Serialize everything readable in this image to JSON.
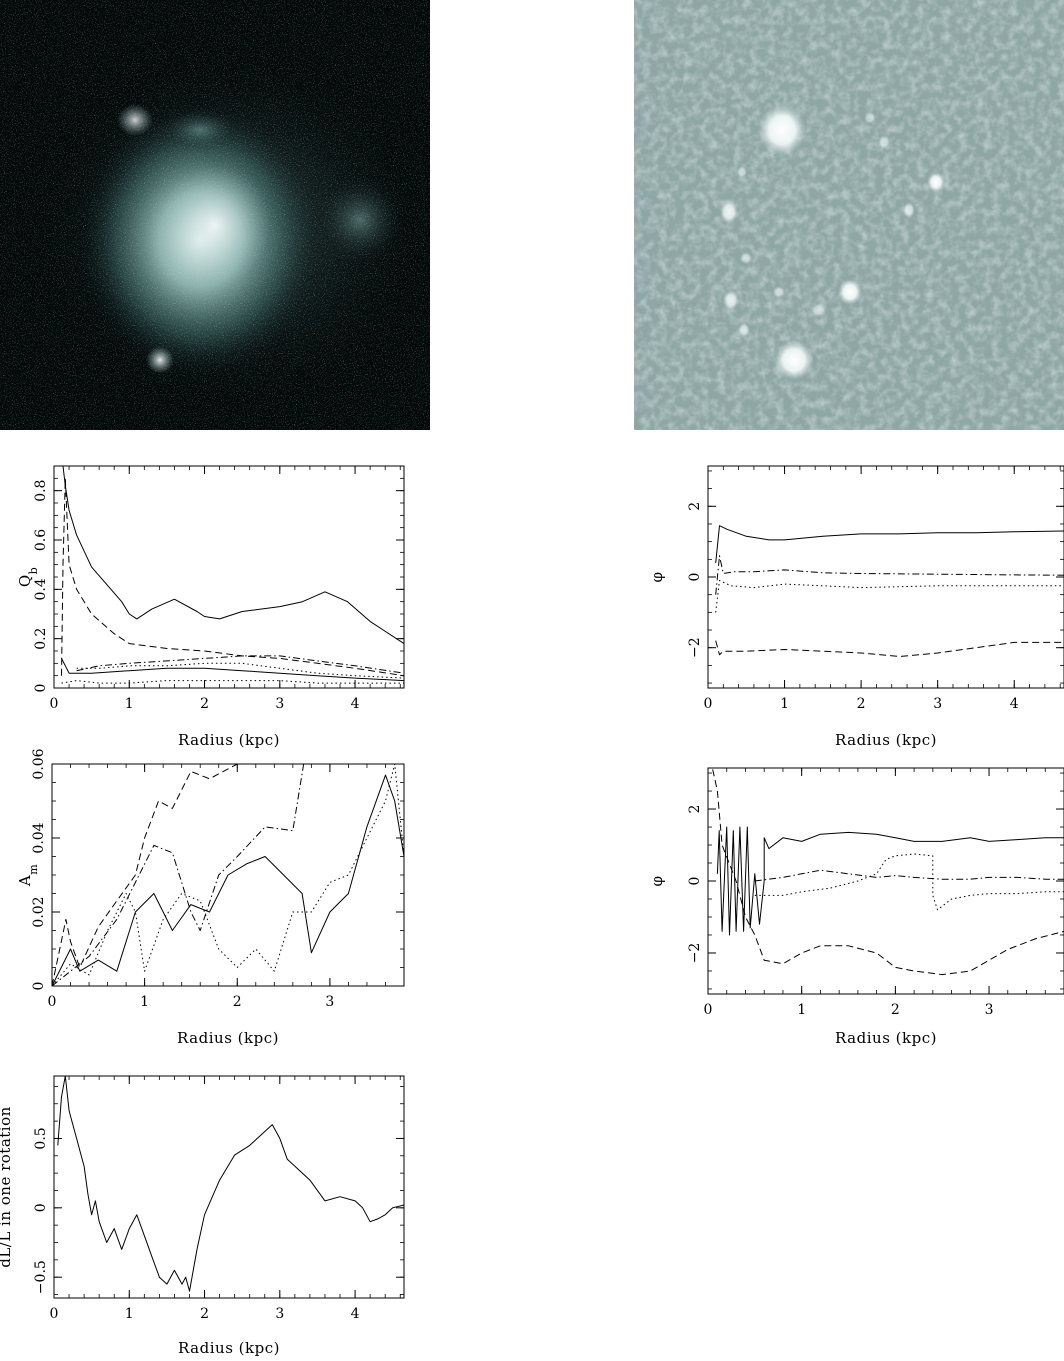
{
  "colors": {
    "left_image_background": "#020808",
    "left_image_glow": "#cfe8e8",
    "right_image_background": "#8ea6a4",
    "right_image_spots": "#ffffff",
    "axes": "#000000"
  },
  "images": [
    {
      "name": "galaxy-image-left"
    },
    {
      "name": "galaxy-image-right"
    }
  ],
  "chart_data": [
    {
      "type": "line",
      "name": "qb-plot",
      "xlabel": "Radius (kpc)",
      "ylabel": "Q_b",
      "ylabel_main": "Q",
      "ylabel_sub": "b",
      "xlim": [
        0,
        4.65
      ],
      "ylim": [
        0,
        0.9
      ],
      "xticks": [
        0,
        1,
        2,
        3,
        4
      ],
      "yticks": [
        0,
        0.2,
        0.4,
        0.6,
        0.8
      ],
      "xtick_labels": [
        "0",
        "1",
        "2",
        "3",
        "4"
      ],
      "ytick_labels": [
        "0",
        "0.2",
        "0.4",
        "0.6",
        "0.8"
      ],
      "series": [
        {
          "style": "solid",
          "x": [
            0.12,
            0.15,
            0.2,
            0.3,
            0.5,
            0.7,
            0.9,
            1.0,
            1.1,
            1.3,
            1.6,
            1.9,
            2.0,
            2.2,
            2.5,
            3.0,
            3.3,
            3.6,
            3.9,
            4.2,
            4.65
          ],
          "y": [
            0.9,
            0.82,
            0.72,
            0.62,
            0.49,
            0.42,
            0.35,
            0.3,
            0.28,
            0.32,
            0.36,
            0.31,
            0.29,
            0.28,
            0.31,
            0.33,
            0.35,
            0.39,
            0.35,
            0.27,
            0.18
          ]
        },
        {
          "style": "dashed",
          "x": [
            0.1,
            0.12,
            0.15,
            0.2,
            0.3,
            0.5,
            0.8,
            1.0,
            1.5,
            2.0,
            2.5,
            3.0,
            3.5,
            4.0,
            4.65
          ],
          "y": [
            0.05,
            0.5,
            0.85,
            0.5,
            0.4,
            0.3,
            0.22,
            0.18,
            0.16,
            0.15,
            0.13,
            0.12,
            0.1,
            0.08,
            0.05
          ]
        },
        {
          "style": "dashdot",
          "x": [
            0.3,
            0.6,
            1.0,
            1.5,
            2.0,
            2.5,
            3.0,
            3.5,
            4.0,
            4.65
          ],
          "y": [
            0.07,
            0.09,
            0.1,
            0.11,
            0.12,
            0.13,
            0.13,
            0.11,
            0.09,
            0.06
          ]
        },
        {
          "style": "dotted",
          "x": [
            0.3,
            0.6,
            1.0,
            1.5,
            2.0,
            2.5,
            3.0,
            3.5,
            4.0,
            4.65
          ],
          "y": [
            0.08,
            0.08,
            0.09,
            0.09,
            0.1,
            0.1,
            0.08,
            0.06,
            0.05,
            0.04
          ]
        },
        {
          "style": "solid",
          "x": [
            0.1,
            0.2,
            0.5,
            1.0,
            1.5,
            2.0,
            2.5,
            3.0,
            3.5,
            4.0,
            4.65
          ],
          "y": [
            0.12,
            0.06,
            0.06,
            0.07,
            0.08,
            0.08,
            0.07,
            0.06,
            0.05,
            0.04,
            0.03
          ]
        },
        {
          "style": "dotted",
          "x": [
            0.1,
            0.3,
            0.6,
            1.0,
            1.5,
            2.0,
            2.5,
            3.0,
            3.5,
            4.0,
            4.65
          ],
          "y": [
            0.02,
            0.03,
            0.02,
            0.02,
            0.03,
            0.03,
            0.03,
            0.03,
            0.02,
            0.02,
            0.02
          ]
        }
      ]
    },
    {
      "type": "line",
      "name": "phase-plot-1",
      "xlabel": "Radius (kpc)",
      "ylabel": "φ",
      "ylabel_main": "φ",
      "ylabel_sub": "",
      "xlim": [
        0,
        4.65
      ],
      "ylim": [
        -3.14,
        3.14
      ],
      "xticks": [
        0,
        1,
        2,
        3,
        4
      ],
      "yticks": [
        -2,
        0,
        2
      ],
      "xtick_labels": [
        "0",
        "1",
        "2",
        "3",
        "4"
      ],
      "ytick_labels": [
        "−2",
        "0",
        "2"
      ],
      "series": [
        {
          "style": "solid",
          "x": [
            0.1,
            0.15,
            0.25,
            0.5,
            0.8,
            1.0,
            1.5,
            2.0,
            2.5,
            3.0,
            3.5,
            4.0,
            4.65
          ],
          "y": [
            0.4,
            1.45,
            1.35,
            1.15,
            1.05,
            1.05,
            1.15,
            1.22,
            1.22,
            1.25,
            1.25,
            1.28,
            1.3
          ]
        },
        {
          "style": "dashdot",
          "x": [
            0.1,
            0.15,
            0.2,
            0.35,
            0.6,
            1.0,
            1.5,
            2.0,
            3.0,
            4.0,
            4.65
          ],
          "y": [
            -0.5,
            0.6,
            0.1,
            0.15,
            0.15,
            0.2,
            0.12,
            0.1,
            0.08,
            0.06,
            0.05
          ]
        },
        {
          "style": "dotted",
          "x": [
            0.1,
            0.15,
            0.3,
            0.6,
            1.0,
            1.5,
            2.0,
            3.0,
            4.0,
            4.65
          ],
          "y": [
            -1.0,
            -0.1,
            -0.25,
            -0.3,
            -0.2,
            -0.25,
            -0.3,
            -0.25,
            -0.25,
            -0.25
          ]
        },
        {
          "style": "dashed",
          "x": [
            0.1,
            0.15,
            0.2,
            0.5,
            1.0,
            1.5,
            2.0,
            2.5,
            3.0,
            3.5,
            4.0,
            4.65
          ],
          "y": [
            -1.8,
            -2.2,
            -2.1,
            -2.1,
            -2.05,
            -2.1,
            -2.15,
            -2.25,
            -2.15,
            -2.0,
            -1.85,
            -1.85
          ]
        }
      ]
    },
    {
      "type": "line",
      "name": "amplitude-plot",
      "xlabel": "Radius (kpc)",
      "ylabel": "A_m",
      "ylabel_main": "A",
      "ylabel_sub": "m",
      "xlim": [
        0,
        3.8
      ],
      "ylim": [
        0,
        0.06
      ],
      "xticks": [
        0,
        1,
        2,
        3
      ],
      "yticks": [
        0,
        0.02,
        0.04,
        0.06
      ],
      "xtick_labels": [
        "0",
        "1",
        "2",
        "3"
      ],
      "ytick_labels": [
        "0",
        "0.02",
        "0.04",
        "0.06"
      ],
      "series": [
        {
          "style": "dashed",
          "x": [
            0.0,
            0.1,
            0.15,
            0.2,
            0.3,
            0.5,
            0.7,
            0.9,
            1.0,
            1.15,
            1.3,
            1.5,
            1.7,
            2.0,
            2.2
          ],
          "y": [
            0.0,
            0.012,
            0.018,
            0.012,
            0.005,
            0.016,
            0.023,
            0.03,
            0.04,
            0.05,
            0.048,
            0.058,
            0.056,
            0.06,
            0.065
          ]
        },
        {
          "style": "dashdot",
          "x": [
            0.0,
            0.2,
            0.4,
            0.7,
            0.9,
            1.1,
            1.3,
            1.5,
            1.6,
            1.8,
            2.0,
            2.3,
            2.6,
            2.75
          ],
          "y": [
            0.0,
            0.004,
            0.008,
            0.018,
            0.028,
            0.038,
            0.036,
            0.02,
            0.015,
            0.03,
            0.035,
            0.043,
            0.042,
            0.065
          ]
        },
        {
          "style": "solid",
          "x": [
            0.0,
            0.2,
            0.3,
            0.5,
            0.7,
            0.9,
            1.1,
            1.3,
            1.5,
            1.7,
            1.9,
            2.1,
            2.3,
            2.5,
            2.7,
            2.8,
            3.0,
            3.2,
            3.4,
            3.6,
            3.7,
            3.8
          ],
          "y": [
            0.0,
            0.01,
            0.004,
            0.007,
            0.004,
            0.02,
            0.025,
            0.015,
            0.022,
            0.02,
            0.03,
            0.033,
            0.035,
            0.03,
            0.025,
            0.009,
            0.02,
            0.025,
            0.043,
            0.057,
            0.05,
            0.035
          ]
        },
        {
          "style": "dotted",
          "x": [
            0.0,
            0.2,
            0.4,
            0.6,
            0.8,
            0.9,
            1.0,
            1.2,
            1.4,
            1.6,
            1.8,
            2.0,
            2.2,
            2.4,
            2.6,
            2.8,
            3.0,
            3.2,
            3.4,
            3.6,
            3.7,
            3.8
          ],
          "y": [
            0.0,
            0.006,
            0.003,
            0.015,
            0.025,
            0.02,
            0.004,
            0.018,
            0.025,
            0.023,
            0.01,
            0.005,
            0.01,
            0.004,
            0.02,
            0.02,
            0.028,
            0.03,
            0.04,
            0.05,
            0.06,
            0.035
          ]
        }
      ]
    },
    {
      "type": "line",
      "name": "phase-plot-2",
      "xlabel": "Radius (kpc)",
      "ylabel": "φ",
      "ylabel_main": "φ",
      "ylabel_sub": "",
      "xlim": [
        0,
        3.8
      ],
      "ylim": [
        -3.14,
        3.14
      ],
      "xticks": [
        0,
        1,
        2,
        3
      ],
      "yticks": [
        -2,
        0,
        2
      ],
      "xtick_labels": [
        "0",
        "1",
        "2",
        "3"
      ],
      "ytick_labels": [
        "−2",
        "0",
        "2"
      ],
      "series": [
        {
          "style": "solid",
          "x": [
            0.1,
            0.12,
            0.15,
            0.2,
            0.23,
            0.27,
            0.3,
            0.34,
            0.38,
            0.42,
            0.45,
            0.5,
            0.55,
            0.6,
            0.6,
            0.65,
            0.8,
            1.0,
            1.2,
            1.5,
            1.8,
            2.0,
            2.2,
            2.5,
            2.8,
            3.0,
            3.3,
            3.6,
            3.8
          ],
          "y": [
            0.2,
            1.4,
            -1.4,
            1.5,
            -1.5,
            1.4,
            -1.4,
            1.5,
            -1.4,
            1.5,
            -1.3,
            0.2,
            -1.2,
            0.0,
            1.2,
            0.9,
            1.2,
            1.1,
            1.3,
            1.35,
            1.3,
            1.2,
            1.1,
            1.1,
            1.2,
            1.1,
            1.15,
            1.2,
            1.2
          ]
        },
        {
          "style": "dashed",
          "x": [
            0.05,
            0.1,
            0.15,
            0.3,
            0.4,
            0.5,
            0.6,
            0.8,
            1.0,
            1.2,
            1.5,
            1.8,
            2.0,
            2.2,
            2.5,
            2.8,
            3.0,
            3.2,
            3.5,
            3.8
          ],
          "y": [
            3.1,
            2.5,
            1.0,
            0.0,
            -1.0,
            -1.5,
            -2.2,
            -2.3,
            -2.0,
            -1.8,
            -1.8,
            -2.0,
            -2.4,
            -2.5,
            -2.6,
            -2.5,
            -2.2,
            -1.9,
            -1.6,
            -1.4
          ]
        },
        {
          "style": "dashdot",
          "x": [
            0.5,
            0.8,
            1.0,
            1.2,
            1.5,
            1.8,
            2.0,
            2.2,
            2.5,
            2.8,
            3.0,
            3.3,
            3.6,
            3.8
          ],
          "y": [
            0.0,
            0.1,
            0.2,
            0.3,
            0.2,
            0.1,
            0.15,
            0.1,
            0.05,
            0.05,
            0.1,
            0.1,
            0.05,
            0.05
          ]
        },
        {
          "style": "dotted",
          "x": [
            0.5,
            0.8,
            1.0,
            1.3,
            1.6,
            1.8,
            1.9,
            2.0,
            2.2,
            2.4,
            2.4,
            2.45,
            2.6,
            2.8,
            3.0,
            3.3,
            3.6,
            3.8
          ],
          "y": [
            -0.4,
            -0.4,
            -0.3,
            -0.2,
            0.0,
            0.2,
            0.6,
            0.7,
            0.75,
            0.7,
            -0.4,
            -0.8,
            -0.5,
            -0.4,
            -0.35,
            -0.35,
            -0.3,
            -0.3
          ]
        }
      ]
    },
    {
      "type": "line",
      "name": "rotation-plot",
      "xlabel": "Radius (kpc)",
      "ylabel": "dL/L in one rotation",
      "ylabel_main": "dL/L in one rotation",
      "ylabel_sub": "",
      "xlim": [
        0,
        4.65
      ],
      "ylim": [
        -0.65,
        0.95
      ],
      "xticks": [
        0,
        1,
        2,
        3,
        4
      ],
      "yticks": [
        -0.5,
        0,
        0.5
      ],
      "xtick_labels": [
        "0",
        "1",
        "2",
        "3",
        "4"
      ],
      "ytick_labels": [
        "−0.5",
        "0",
        "0.5"
      ],
      "series": [
        {
          "style": "solid",
          "x": [
            0.05,
            0.1,
            0.15,
            0.2,
            0.25,
            0.3,
            0.35,
            0.4,
            0.45,
            0.5,
            0.55,
            0.6,
            0.7,
            0.8,
            0.9,
            1.0,
            1.1,
            1.2,
            1.3,
            1.4,
            1.5,
            1.6,
            1.7,
            1.75,
            1.8,
            1.9,
            2.0,
            2.2,
            2.4,
            2.6,
            2.8,
            2.9,
            3.0,
            3.1,
            3.2,
            3.4,
            3.6,
            3.8,
            4.0,
            4.1,
            4.2,
            4.3,
            4.4,
            4.5,
            4.65
          ],
          "y": [
            0.45,
            0.8,
            0.95,
            0.7,
            0.6,
            0.5,
            0.4,
            0.3,
            0.1,
            -0.05,
            0.05,
            -0.1,
            -0.25,
            -0.15,
            -0.3,
            -0.15,
            -0.05,
            -0.2,
            -0.35,
            -0.5,
            -0.55,
            -0.45,
            -0.55,
            -0.5,
            -0.6,
            -0.3,
            -0.05,
            0.2,
            0.38,
            0.45,
            0.55,
            0.6,
            0.5,
            0.35,
            0.3,
            0.2,
            0.05,
            0.08,
            0.05,
            0.0,
            -0.1,
            -0.08,
            -0.05,
            0.0,
            0.02
          ]
        }
      ]
    }
  ]
}
